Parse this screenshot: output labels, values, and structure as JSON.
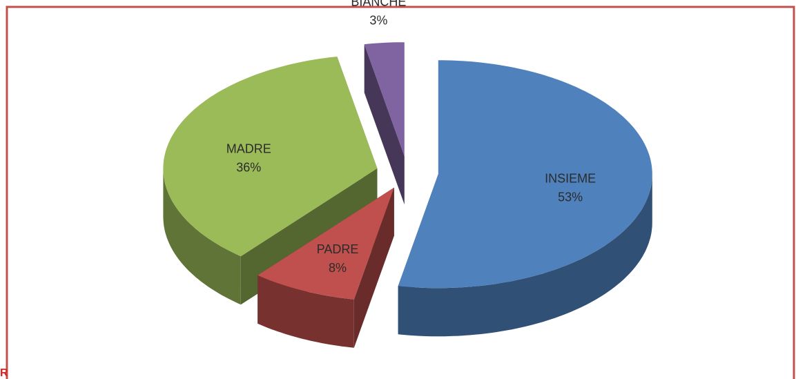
{
  "chart_data": {
    "type": "pie",
    "categories": [
      "INSIEME",
      "PADRE",
      "MADRE",
      "BIANCHE"
    ],
    "values": [
      53,
      8,
      36,
      3
    ],
    "value_labels": [
      "53%",
      "8%",
      "36%",
      "3%"
    ],
    "colors": [
      "#4f81bd",
      "#c0504d",
      "#9bbb59",
      "#8064a2"
    ],
    "exploded": true,
    "three_d": true
  },
  "footer_fragment": "R"
}
